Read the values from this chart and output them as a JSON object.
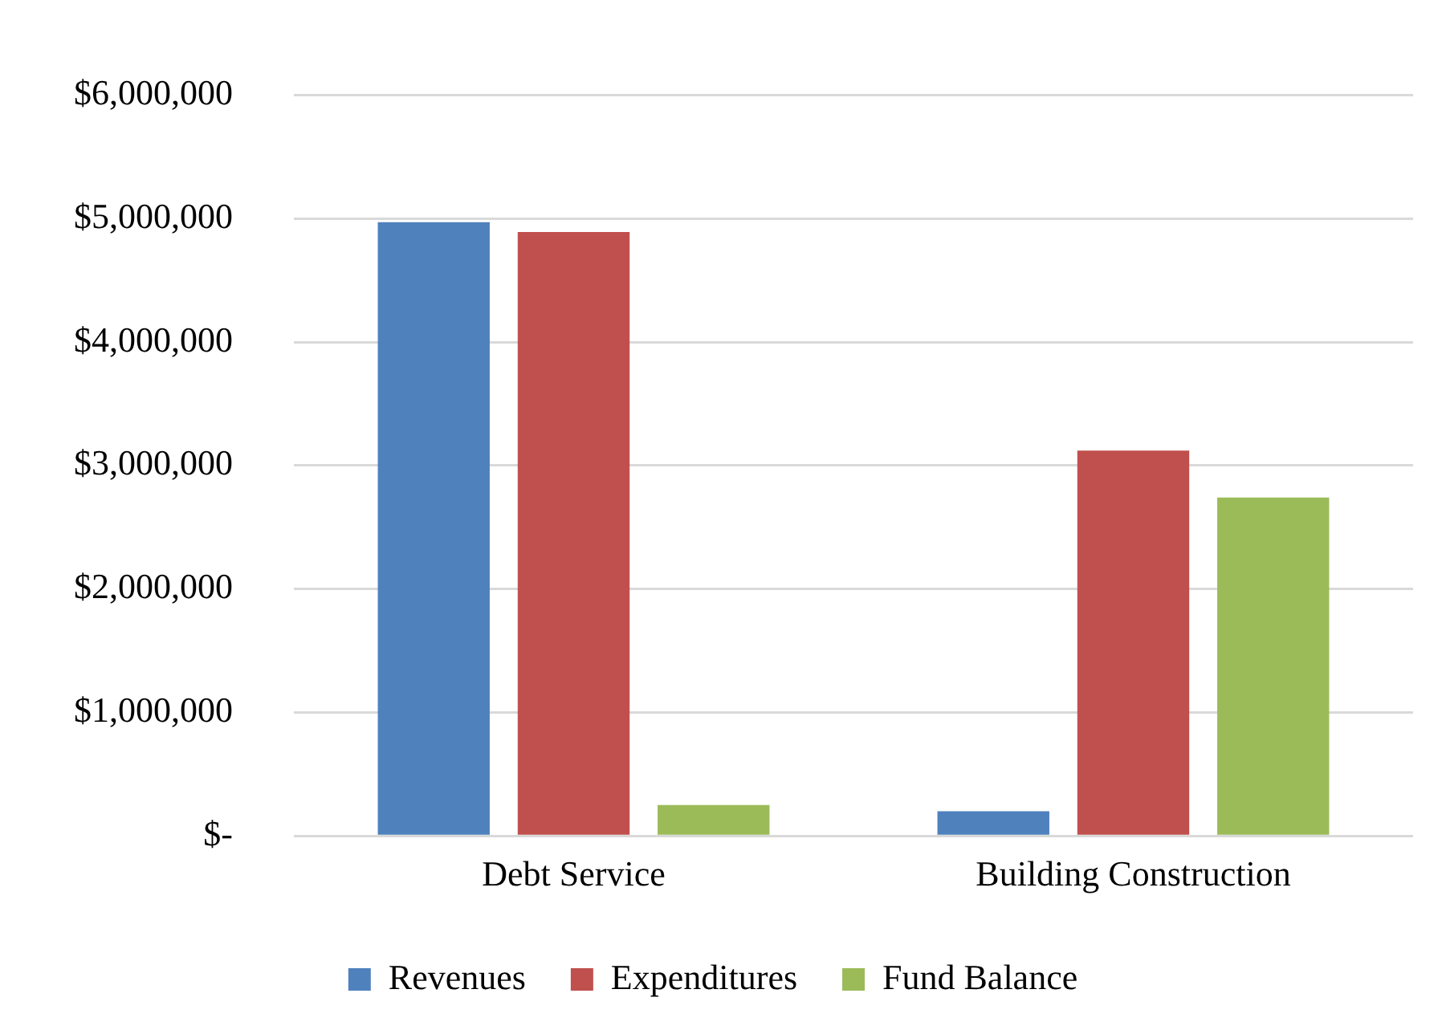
{
  "chart_data": {
    "type": "bar",
    "categories": [
      "Debt Service",
      "Building Construction"
    ],
    "series": [
      {
        "name": "Revenues",
        "color": "#4f81bd",
        "values": [
          4970000,
          200000
        ]
      },
      {
        "name": "Expenditures",
        "color": "#c0504d",
        "values": [
          4890000,
          3120000
        ]
      },
      {
        "name": "Fund Balance",
        "color": "#9bbb59",
        "values": [
          250000,
          2740000
        ]
      }
    ],
    "ylim": [
      0,
      6000000
    ],
    "yticks": [
      {
        "value": 0,
        "label": "$-"
      },
      {
        "value": 1000000,
        "label": "$1,000,000"
      },
      {
        "value": 2000000,
        "label": "$2,000,000"
      },
      {
        "value": 3000000,
        "label": "$3,000,000"
      },
      {
        "value": 4000000,
        "label": "$4,000,000"
      },
      {
        "value": 5000000,
        "label": "$5,000,000"
      },
      {
        "value": 6000000,
        "label": "$6,000,000"
      }
    ],
    "grid": "y",
    "legend": "bottom"
  }
}
